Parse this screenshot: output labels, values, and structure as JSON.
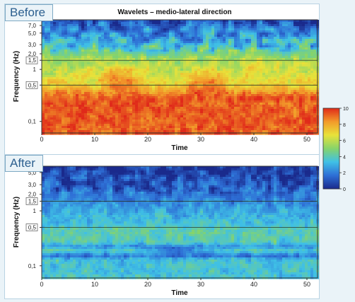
{
  "chart_data": [
    {
      "type": "heatmap",
      "panel_label": "Before",
      "title": "Wavelets – medio-lateral direction",
      "xlabel": "Time",
      "ylabel": "Frequency (Hz)",
      "xlim": [
        0,
        52
      ],
      "yscale": "log",
      "x_ticks": [
        0,
        10,
        20,
        30,
        40,
        50
      ],
      "y_ticks": [
        "7,0",
        "5,0",
        "3,0",
        "2,0",
        "1,5",
        "1",
        "0,5",
        "0,1"
      ],
      "y_tick_values": [
        7,
        5,
        3,
        2,
        1.5,
        1,
        0.5,
        0.1
      ],
      "boxed_ticks": [
        "1,5",
        "0,5"
      ],
      "reference_lines_hz": [
        1.5,
        0.5
      ],
      "description": "high power (8-10) dominates frequencies below ~0.3 Hz across all time; 5-8 between 0.3 and 1.5 Hz with peaks near t=15 and t=30; low power (0-3) above ~2 Hz"
    },
    {
      "type": "heatmap",
      "panel_label": "After",
      "xlabel": "Time",
      "ylabel": "Frequency (Hz)",
      "xlim": [
        0,
        52
      ],
      "yscale": "log",
      "x_ticks": [
        0,
        10,
        20,
        30,
        40,
        50
      ],
      "y_ticks": [
        "5,0",
        "3,0",
        "2,0",
        "1,5",
        "1",
        "0,5",
        "0,1"
      ],
      "y_tick_values": [
        5,
        3,
        2,
        1.5,
        1,
        0.5,
        0.1
      ],
      "boxed_ticks": [
        "1,5",
        "0,5"
      ],
      "reference_lines_hz": [
        1.5,
        0.5
      ],
      "description": "power mostly 2-5 across all frequencies; low power (0-2) above ~1 Hz and in bands near 0.15 Hz"
    }
  ],
  "colorbar": {
    "min": 0,
    "max": 10,
    "ticks": [
      "10",
      "8",
      "6",
      "4",
      "2",
      "0"
    ],
    "colors": [
      "#1a2a8c",
      "#2e6fd6",
      "#3fc0e6",
      "#86d46a",
      "#e8e23a",
      "#f29a2a",
      "#e02a1a"
    ]
  }
}
